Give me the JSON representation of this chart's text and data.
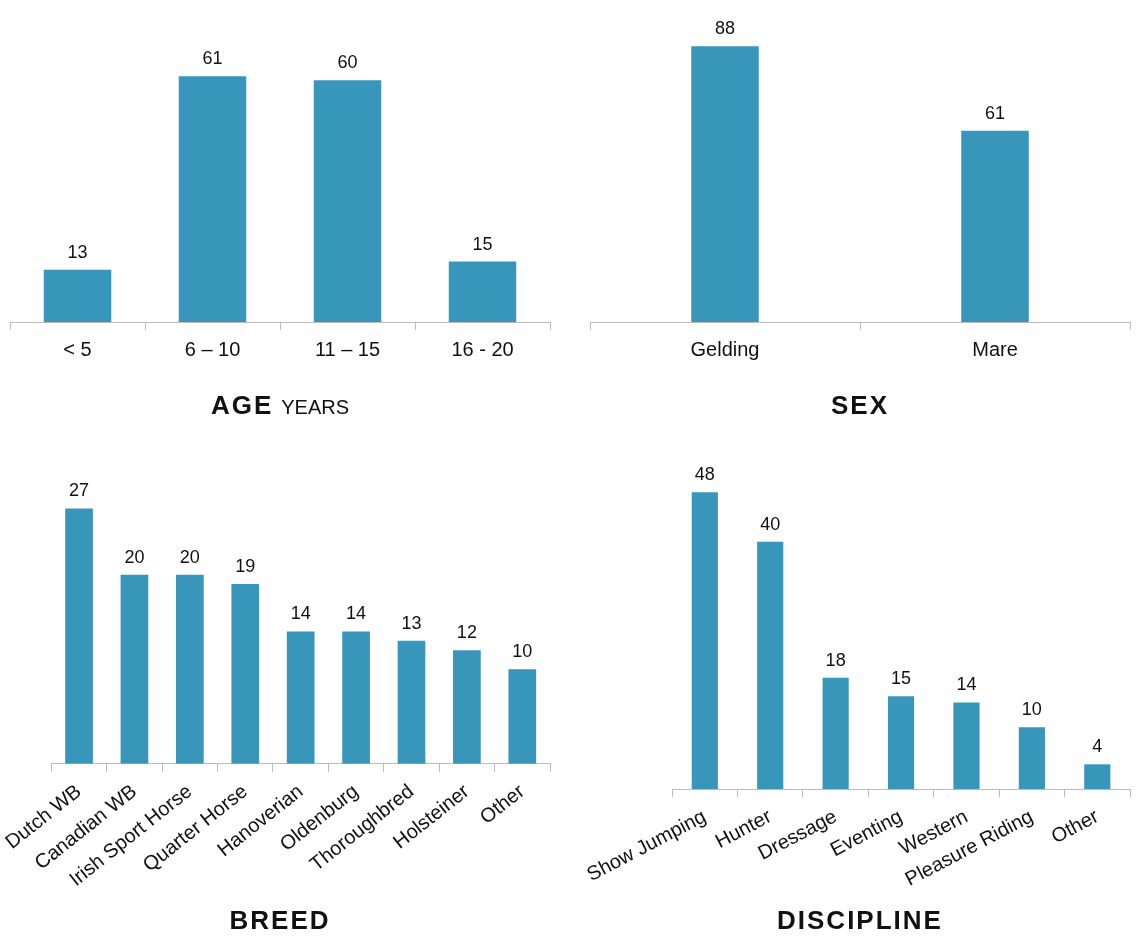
{
  "chart_data": [
    {
      "type": "bar",
      "xlabel": "AGE",
      "subtitle": "YEARS",
      "categories": [
        "< 5",
        "6 – 10",
        "11 – 15",
        "16 - 20"
      ],
      "values": [
        13,
        61,
        60,
        15
      ],
      "color": "#3896bb",
      "data_labels": true,
      "tick_labels": "x",
      "legend": false,
      "grid": false
    },
    {
      "type": "bar",
      "xlabel": "SEX",
      "categories": [
        "Gelding",
        "Mare"
      ],
      "values": [
        88,
        61
      ],
      "color": "#3896bb",
      "data_labels": true,
      "tick_labels": "x",
      "legend": false,
      "grid": false
    },
    {
      "type": "bar",
      "xlabel": "BREED",
      "categories": [
        "Dutch WB",
        "Canadian WB",
        "Irish Sport Horse",
        "Quarter Horse",
        "Hanoverian",
        "Oldenburg",
        "Thoroughbred",
        "Holsteiner",
        "Other"
      ],
      "values": [
        27,
        20,
        20,
        19,
        14,
        14,
        13,
        12,
        10
      ],
      "color": "#3896bb",
      "data_labels": true,
      "tick_labels": "x",
      "legend": false,
      "grid": false
    },
    {
      "type": "bar",
      "xlabel": "DISCIPLINE",
      "categories": [
        "Show Jumping",
        "Hunter",
        "Dressage",
        "Eventing",
        "Western",
        "Pleasure Riding",
        "Other"
      ],
      "values": [
        48,
        40,
        18,
        15,
        14,
        10,
        4
      ],
      "color": "#3896bb",
      "data_labels": true,
      "tick_labels": "x",
      "legend": false,
      "grid": false
    }
  ]
}
